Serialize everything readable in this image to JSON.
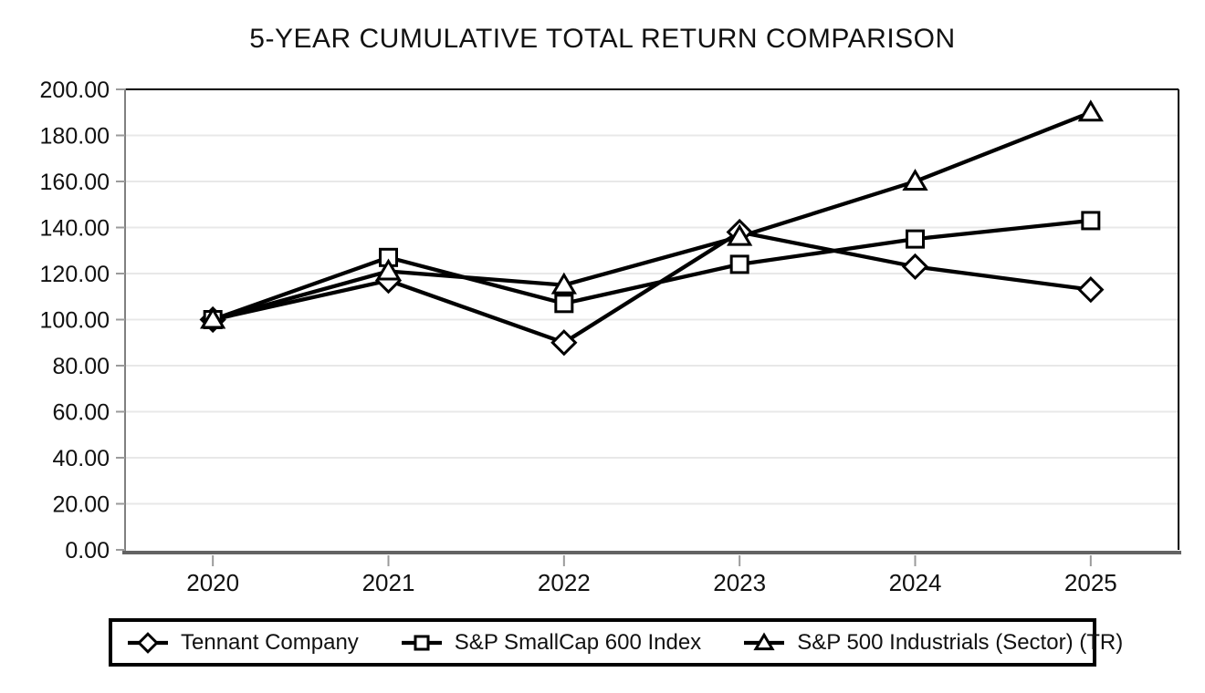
{
  "chart_data": {
    "type": "line",
    "title": "5-YEAR CUMULATIVE TOTAL RETURN COMPARISON",
    "categories": [
      "2020",
      "2021",
      "2022",
      "2023",
      "2024",
      "2025"
    ],
    "series": [
      {
        "name": "Tennant Company",
        "marker": "diamond",
        "values": [
          100.0,
          117.0,
          90.0,
          138.0,
          123.0,
          113.0
        ]
      },
      {
        "name": "S&P SmallCap 600 Index",
        "marker": "square",
        "values": [
          100.0,
          127.0,
          107.0,
          124.0,
          135.0,
          143.0
        ]
      },
      {
        "name": "S&P 500 Industrials (Sector) (TR)",
        "marker": "triangle",
        "values": [
          100.0,
          121.0,
          115.0,
          136.0,
          160.0,
          190.0
        ]
      }
    ],
    "xlabel": "",
    "ylabel": "",
    "ylim": [
      0,
      200
    ],
    "ytick_step": 20,
    "ytick_decimals": 2,
    "grid": "horizontal",
    "legend_position": "bottom",
    "colors": {
      "background": "#ffffff",
      "text": "#111111",
      "series_stroke": "#000000",
      "marker_fill": "#ffffff",
      "gridline": "#e8e8e8",
      "plot_border": "#000000",
      "left_axis": "#808080",
      "bottom_axis": "#636363",
      "tick": "#9b9b9b"
    }
  }
}
